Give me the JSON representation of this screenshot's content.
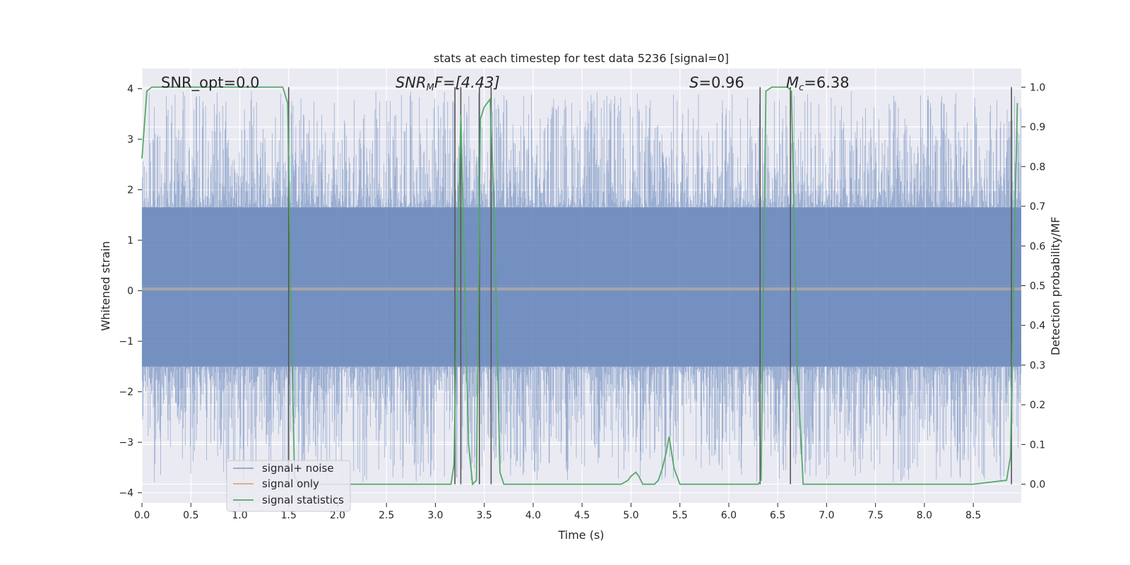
{
  "chart_data": {
    "type": "line",
    "title": "stats at each timestep for test data 5236 [signal=0]",
    "xlabel": "Time (s)",
    "ylabel": "Whitened strain",
    "ylabel_right": "Detection probability/MF",
    "xlim": [
      0.0,
      8.99
    ],
    "ylim": [
      -4.2,
      4.4
    ],
    "ylim_right": [
      -0.047,
      1.047
    ],
    "x_ticks": [
      "0.0",
      "0.5",
      "1.0",
      "1.5",
      "2.0",
      "2.5",
      "3.0",
      "3.5",
      "4.0",
      "4.5",
      "5.0",
      "5.5",
      "6.0",
      "6.5",
      "7.0",
      "7.5",
      "8.0",
      "8.5"
    ],
    "y_ticks": [
      "4",
      "3",
      "2",
      "1",
      "0",
      "−1",
      "−2",
      "−3",
      "−4"
    ],
    "y_ticks_right": [
      "1.0",
      "0.9",
      "0.8",
      "0.7",
      "0.6",
      "0.5",
      "0.4",
      "0.3",
      "0.2",
      "0.1",
      "0.0"
    ],
    "grid": true,
    "legend_position": "lower-left",
    "legend": [
      "signal+ noise",
      "signal only",
      "signal statistics"
    ],
    "colors": {
      "signal_noise": "#4c72b0",
      "signal_only": "#dd8452",
      "signal_statistics": "#55a868",
      "vline": "#555555",
      "axes_bg": "#eaeaf2"
    },
    "annotations": {
      "snr_opt": "SNR_opt=0.0",
      "snr_mf_base": "SNR",
      "snr_mf_sub": "M",
      "snr_mf_rest": "F=[4.43]",
      "s_var": "S",
      "s_rest": "=0.96",
      "mc_base": "M",
      "mc_sub": "c",
      "mc_rest": "=6.38"
    },
    "series": [
      {
        "name": "signal statistics",
        "axis": "right",
        "x": [
          0.0,
          0.05,
          0.1,
          0.2,
          0.3,
          0.5,
          0.8,
          1.0,
          1.2,
          1.4,
          1.44,
          1.49,
          1.52,
          1.56,
          1.6,
          1.7,
          2.0,
          2.5,
          2.8,
          3.0,
          3.1,
          3.16,
          3.19,
          3.22,
          3.26,
          3.3,
          3.34,
          3.38,
          3.42,
          3.46,
          3.5,
          3.56,
          3.6,
          3.66,
          3.7,
          4.0,
          4.5,
          4.9,
          4.97,
          5.0,
          5.05,
          5.08,
          5.12,
          5.17,
          5.24,
          5.28,
          5.32,
          5.36,
          5.39,
          5.44,
          5.5,
          5.8,
          6.0,
          6.2,
          6.3,
          6.33,
          6.38,
          6.44,
          6.5,
          6.6,
          6.64,
          6.7,
          6.76,
          6.8,
          7.0,
          7.5,
          8.0,
          8.5,
          8.84,
          8.88,
          8.92,
          8.95
        ],
        "values": [
          0.82,
          0.99,
          1.0,
          1.0,
          1.0,
          1.0,
          1.0,
          1.0,
          1.0,
          1.0,
          1.0,
          0.96,
          0.5,
          0.02,
          0.0,
          0.0,
          0.0,
          0.0,
          0.0,
          0.0,
          0.0,
          0.0,
          0.05,
          0.45,
          0.93,
          0.5,
          0.1,
          0.0,
          0.01,
          0.92,
          0.95,
          0.97,
          0.7,
          0.03,
          0.0,
          0.0,
          0.0,
          0.0,
          0.01,
          0.02,
          0.03,
          0.02,
          0.0,
          0.0,
          0.0,
          0.01,
          0.04,
          0.08,
          0.12,
          0.04,
          0.0,
          0.0,
          0.0,
          0.0,
          0.0,
          0.01,
          0.99,
          1.0,
          1.0,
          1.0,
          0.99,
          0.3,
          0.0,
          0.0,
          0.0,
          0.0,
          0.0,
          0.0,
          0.01,
          0.07,
          0.6,
          0.96
        ]
      }
    ],
    "vlines_x": [
      1.5,
      3.2,
      3.26,
      3.45,
      3.57,
      6.32,
      6.63,
      8.89
    ],
    "noise_envelope": {
      "low": -1.5,
      "high": 1.65
    }
  }
}
